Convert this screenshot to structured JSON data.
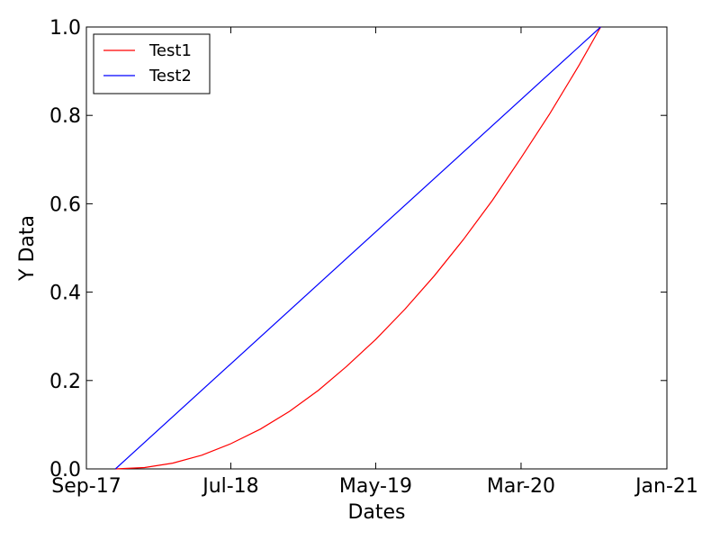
{
  "chart_data": {
    "type": "line",
    "title": "",
    "xlabel": "Dates",
    "ylabel": "Y Data",
    "xlim": [
      "2017-09-01",
      "2021-01-01"
    ],
    "ylim": [
      0,
      1
    ],
    "x_ticks": [
      {
        "date": "2017-09-01",
        "label": "Sep-17"
      },
      {
        "date": "2018-07-01",
        "label": "Jul-18"
      },
      {
        "date": "2019-05-01",
        "label": "May-19"
      },
      {
        "date": "2020-03-01",
        "label": "Mar-20"
      },
      {
        "date": "2021-01-01",
        "label": "Jan-21"
      }
    ],
    "y_ticks": [
      {
        "value": 0.0,
        "label": "0.0"
      },
      {
        "value": 0.2,
        "label": "0.2"
      },
      {
        "value": 0.4,
        "label": "0.4"
      },
      {
        "value": 0.6,
        "label": "0.6"
      },
      {
        "value": 0.8,
        "label": "0.8"
      },
      {
        "value": 1.0,
        "label": "1.0"
      }
    ],
    "grid": false,
    "legend_position": "top-left",
    "series": [
      {
        "name": "Test1",
        "color": "#ff0000",
        "x": [
          "2017-11-01",
          "2018-01-01",
          "2018-03-01",
          "2018-05-01",
          "2018-07-01",
          "2018-09-01",
          "2018-11-01",
          "2019-01-01",
          "2019-03-01",
          "2019-05-01",
          "2019-07-01",
          "2019-09-01",
          "2019-11-01",
          "2020-01-01",
          "2020-03-01",
          "2020-05-01",
          "2020-07-01",
          "2020-08-15"
        ],
        "y": [
          0.0,
          0.003,
          0.013,
          0.031,
          0.057,
          0.09,
          0.13,
          0.178,
          0.232,
          0.293,
          0.361,
          0.437,
          0.519,
          0.608,
          0.704,
          0.805,
          0.914,
          1.0
        ]
      },
      {
        "name": "Test2",
        "color": "#0000ff",
        "x": [
          "2017-11-01",
          "2020-08-15"
        ],
        "y": [
          0.0,
          1.0
        ]
      }
    ]
  }
}
